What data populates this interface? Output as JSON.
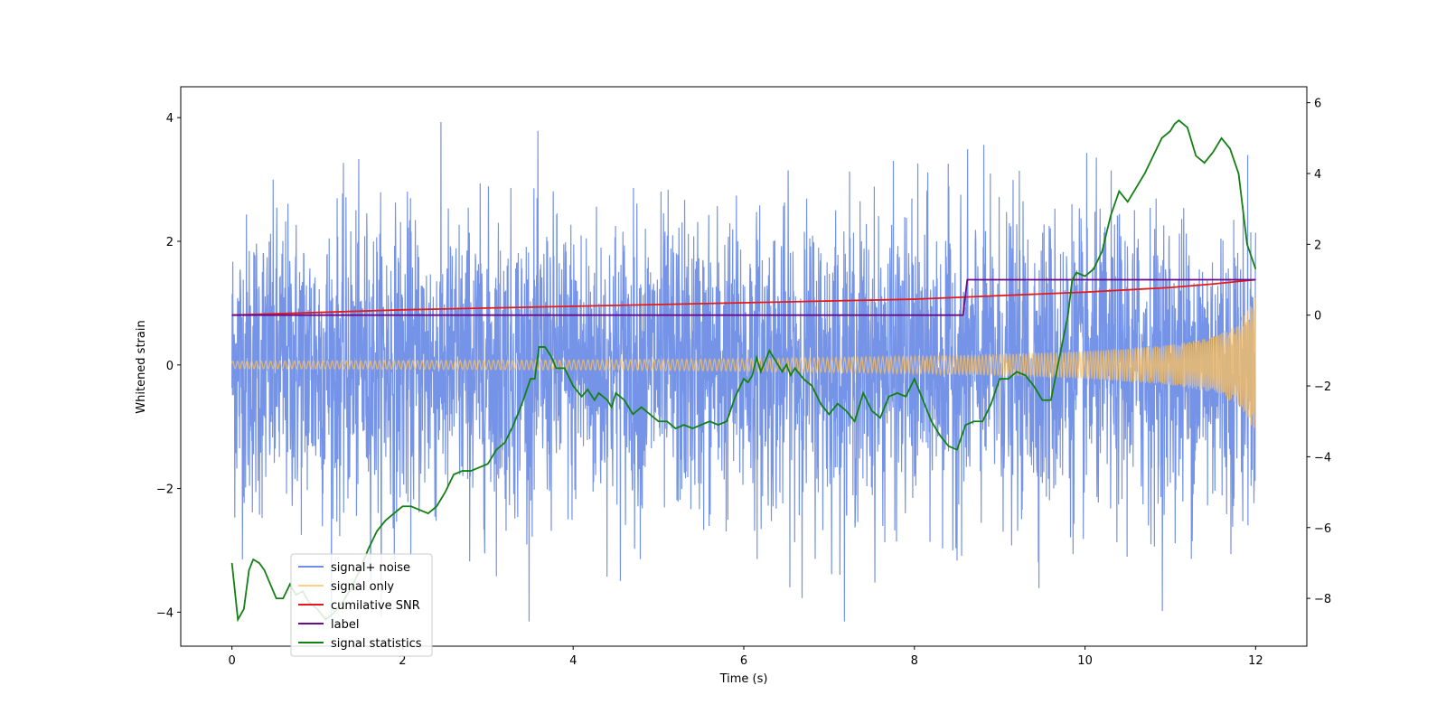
{
  "chart_data": {
    "type": "line",
    "title": "",
    "xlabel": "Time (s)",
    "ylabel": "Whitened strain",
    "y2label": "",
    "xlim": [
      -0.6,
      12.6
    ],
    "ylim": [
      -4.55,
      4.5
    ],
    "y2lim": [
      -9.35,
      6.45
    ],
    "xticks": [
      0,
      2,
      4,
      6,
      8,
      10,
      12
    ],
    "yticks": [
      -4,
      -2,
      0,
      2,
      4
    ],
    "y2ticks": [
      -8,
      -6,
      -4,
      -2,
      0,
      2,
      4,
      6
    ],
    "legend_position": "lower-left",
    "series": [
      {
        "name": "signal+ noise",
        "axis": "left",
        "color": "#6f8ee6",
        "description": "dense noisy trace, approx. within ±2.5, peaks near ±4",
        "x_range": [
          0,
          12
        ],
        "amplitude": 1.2,
        "max_value": 4.05,
        "min_value": -4.15
      },
      {
        "name": "signal only",
        "axis": "left",
        "color": "#ffc15c",
        "description": "chirp signal, amplitude growing from ~0.05 to ~1.1 at t=12",
        "x_range": [
          0,
          12
        ],
        "envelope": {
          "x": [
            0,
            2,
            4,
            6,
            8,
            9,
            10,
            11,
            11.5,
            11.8,
            12
          ],
          "amplitude": [
            0.06,
            0.07,
            0.08,
            0.1,
            0.14,
            0.17,
            0.22,
            0.32,
            0.45,
            0.65,
            1.1
          ]
        }
      },
      {
        "name": "cumilative SNR",
        "axis": "right",
        "color": "#e31a1c",
        "x": [
          0,
          2,
          4,
          6,
          8,
          9,
          10,
          11,
          11.5,
          12
        ],
        "values": [
          0,
          0.15,
          0.25,
          0.35,
          0.45,
          0.55,
          0.65,
          0.78,
          0.88,
          1.0
        ]
      },
      {
        "name": "label",
        "axis": "right",
        "color": "#6a0a8a",
        "x": [
          0,
          8.57,
          8.62,
          12
        ],
        "values": [
          0,
          0,
          1,
          1
        ]
      },
      {
        "name": "signal statistics",
        "axis": "right",
        "color": "#138013",
        "x": [
          0,
          0.07,
          0.14,
          0.2,
          0.25,
          0.32,
          0.38,
          0.45,
          0.52,
          0.6,
          0.68,
          0.75,
          0.83,
          0.9,
          1.0,
          1.1,
          1.2,
          1.3,
          1.4,
          1.5,
          1.6,
          1.7,
          1.8,
          1.9,
          2.0,
          2.1,
          2.2,
          2.3,
          2.4,
          2.5,
          2.6,
          2.7,
          2.8,
          2.9,
          3.0,
          3.1,
          3.2,
          3.3,
          3.4,
          3.5,
          3.55,
          3.6,
          3.67,
          3.75,
          3.8,
          3.9,
          4.0,
          4.1,
          4.17,
          4.25,
          4.3,
          4.4,
          4.45,
          4.5,
          4.6,
          4.7,
          4.8,
          4.9,
          5.0,
          5.1,
          5.2,
          5.3,
          5.4,
          5.5,
          5.6,
          5.7,
          5.8,
          5.9,
          6.0,
          6.05,
          6.1,
          6.15,
          6.2,
          6.3,
          6.4,
          6.45,
          6.5,
          6.55,
          6.6,
          6.7,
          6.8,
          6.9,
          7.0,
          7.1,
          7.2,
          7.3,
          7.4,
          7.5,
          7.6,
          7.7,
          7.8,
          7.9,
          8.0,
          8.1,
          8.2,
          8.3,
          8.4,
          8.5,
          8.6,
          8.7,
          8.8,
          8.9,
          9.0,
          9.1,
          9.2,
          9.3,
          9.4,
          9.5,
          9.6,
          9.7,
          9.8,
          9.85,
          9.9,
          10.0,
          10.1,
          10.2,
          10.3,
          10.4,
          10.5,
          10.6,
          10.7,
          10.8,
          10.9,
          11.0,
          11.05,
          11.1,
          11.2,
          11.3,
          11.4,
          11.5,
          11.6,
          11.7,
          11.8,
          11.9,
          12.0
        ],
        "values": [
          -7.0,
          -8.6,
          -8.3,
          -7.2,
          -6.9,
          -7.0,
          -7.2,
          -7.6,
          -8.0,
          -8.0,
          -7.6,
          -7.9,
          -7.8,
          -8.1,
          -8.3,
          -8.6,
          -8.4,
          -8.1,
          -7.7,
          -7.2,
          -6.6,
          -6.1,
          -5.8,
          -5.6,
          -5.4,
          -5.4,
          -5.5,
          -5.6,
          -5.4,
          -5.0,
          -4.5,
          -4.4,
          -4.4,
          -4.3,
          -4.2,
          -3.8,
          -3.6,
          -3.1,
          -2.5,
          -1.8,
          -1.8,
          -0.9,
          -0.9,
          -1.2,
          -1.5,
          -1.5,
          -2.0,
          -2.3,
          -2.1,
          -2.4,
          -2.2,
          -2.4,
          -2.6,
          -2.2,
          -2.4,
          -2.8,
          -2.6,
          -2.8,
          -3.0,
          -3.0,
          -3.2,
          -3.1,
          -3.2,
          -3.1,
          -3.0,
          -3.1,
          -3.0,
          -2.3,
          -1.8,
          -1.9,
          -1.7,
          -1.2,
          -1.6,
          -1.0,
          -1.4,
          -1.6,
          -1.4,
          -1.7,
          -1.5,
          -1.8,
          -2.0,
          -2.5,
          -2.8,
          -2.5,
          -2.7,
          -3.0,
          -2.2,
          -2.7,
          -2.9,
          -2.3,
          -2.2,
          -2.3,
          -1.8,
          -2.4,
          -3.0,
          -3.4,
          -3.7,
          -3.8,
          -3.1,
          -3.0,
          -3.0,
          -2.5,
          -1.8,
          -1.8,
          -1.6,
          -1.7,
          -2.0,
          -2.4,
          -2.4,
          -1.2,
          0.0,
          1.0,
          1.2,
          1.1,
          1.3,
          1.8,
          2.8,
          3.5,
          3.2,
          3.6,
          4.0,
          4.5,
          5.0,
          5.2,
          5.4,
          5.5,
          5.3,
          4.5,
          4.3,
          4.6,
          5.0,
          4.7,
          4.0,
          2.0,
          1.3
        ]
      }
    ]
  }
}
